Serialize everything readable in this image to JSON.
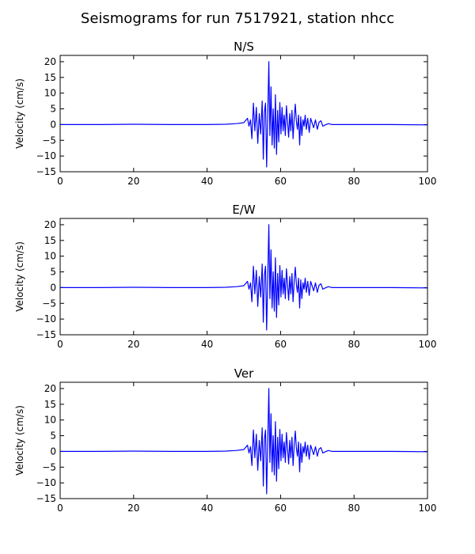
{
  "suptitle": "Seismograms for run 7517921, station nhcc",
  "chart_data": [
    {
      "type": "line",
      "title": "N/S",
      "ylabel": "Velocity (cm/s)",
      "xlabel": "",
      "xlim": [
        0,
        100
      ],
      "ylim": [
        -15,
        22
      ],
      "xticks": [
        "0",
        "20",
        "40",
        "60",
        "80",
        "100"
      ],
      "yticks": [
        "20",
        "15",
        "10",
        "5",
        "0",
        "−5",
        "−10",
        "−15"
      ],
      "grid": false,
      "series": [
        {
          "color": "#0000ff",
          "x": [
            0,
            10,
            20,
            30,
            40,
            45,
            48,
            50,
            51,
            51.4,
            51.8,
            52.2,
            52.6,
            53.0,
            53.4,
            53.8,
            54.2,
            54.6,
            55.0,
            55.3,
            55.6,
            55.9,
            56.2,
            56.5,
            56.8,
            57.1,
            57.4,
            57.7,
            58.0,
            58.3,
            58.6,
            58.9,
            59.2,
            59.5,
            59.8,
            60.1,
            60.4,
            60.7,
            61.0,
            61.3,
            61.6,
            61.9,
            62.2,
            62.5,
            62.8,
            63.1,
            63.4,
            63.7,
            64.0,
            64.3,
            64.6,
            64.9,
            65.2,
            65.5,
            65.8,
            66.1,
            66.4,
            66.7,
            67.0,
            67.4,
            67.8,
            68.2,
            68.6,
            69.0,
            69.5,
            70.0,
            70.5,
            71.0,
            71.5,
            72.0,
            73,
            74,
            76,
            80,
            90,
            100
          ],
          "y": [
            0,
            0,
            0.1,
            0,
            0,
            0.1,
            0.3,
            0.6,
            2.0,
            -0.5,
            1.5,
            -4.5,
            6.8,
            -2.0,
            5.5,
            -6.0,
            3.5,
            -3.0,
            7.5,
            -11.0,
            4.0,
            6.8,
            -13.5,
            3.0,
            20.0,
            -3.5,
            12.0,
            -6.5,
            5.0,
            -7.5,
            9.5,
            -9.5,
            4.5,
            -5.5,
            7.0,
            -3.0,
            5.5,
            -2.0,
            3.0,
            -3.5,
            6.0,
            1.0,
            -4.0,
            3.5,
            -2.0,
            4.5,
            -4.5,
            2.0,
            6.5,
            1.0,
            -1.5,
            3.0,
            -6.5,
            2.5,
            -3.5,
            1.5,
            -0.5,
            3.0,
            -1.5,
            2.0,
            -2.5,
            2.0,
            0.5,
            -1.0,
            1.5,
            -1.5,
            0.8,
            1.2,
            -0.5,
            -0.2,
            0.3,
            0,
            0,
            0,
            0,
            -0.1
          ]
        }
      ]
    },
    {
      "type": "line",
      "title": "E/W",
      "ylabel": "Velocity (cm/s)",
      "xlabel": "",
      "xlim": [
        0,
        100
      ],
      "ylim": [
        -15,
        22
      ],
      "xticks": [
        "0",
        "20",
        "40",
        "60",
        "80",
        "100"
      ],
      "yticks": [
        "20",
        "15",
        "10",
        "5",
        "0",
        "−5",
        "−10",
        "−15"
      ],
      "grid": false,
      "series": [
        {
          "color": "#0000ff",
          "x": [
            0,
            10,
            20,
            30,
            40,
            45,
            48,
            50,
            51,
            51.4,
            51.8,
            52.2,
            52.6,
            53.0,
            53.4,
            53.8,
            54.2,
            54.6,
            55.0,
            55.3,
            55.6,
            55.9,
            56.2,
            56.5,
            56.8,
            57.1,
            57.4,
            57.7,
            58.0,
            58.3,
            58.6,
            58.9,
            59.2,
            59.5,
            59.8,
            60.1,
            60.4,
            60.7,
            61.0,
            61.3,
            61.6,
            61.9,
            62.2,
            62.5,
            62.8,
            63.1,
            63.4,
            63.7,
            64.0,
            64.3,
            64.6,
            64.9,
            65.2,
            65.5,
            65.8,
            66.1,
            66.4,
            66.7,
            67.0,
            67.4,
            67.8,
            68.2,
            68.6,
            69.0,
            69.5,
            70.0,
            70.5,
            71.0,
            71.5,
            72.0,
            73,
            74,
            76,
            80,
            90,
            100
          ],
          "y": [
            0,
            0,
            0.1,
            0,
            0,
            0.1,
            0.3,
            0.6,
            2.0,
            -0.5,
            1.5,
            -4.5,
            6.8,
            -2.0,
            5.5,
            -6.0,
            3.5,
            -3.0,
            7.5,
            -11.0,
            4.0,
            6.8,
            -13.5,
            3.0,
            20.0,
            -3.5,
            12.0,
            -6.5,
            5.0,
            -7.5,
            9.5,
            -9.5,
            4.5,
            -5.5,
            7.0,
            -3.0,
            5.5,
            -2.0,
            3.0,
            -3.5,
            6.0,
            1.0,
            -4.0,
            3.5,
            -2.0,
            4.5,
            -4.5,
            2.0,
            6.5,
            1.0,
            -1.5,
            3.0,
            -6.5,
            2.5,
            -3.5,
            1.5,
            -0.5,
            3.0,
            -1.5,
            2.0,
            -2.5,
            2.0,
            0.5,
            -1.0,
            1.5,
            -1.5,
            0.8,
            1.2,
            -0.5,
            -0.2,
            0.3,
            0,
            0,
            0,
            0,
            -0.1
          ]
        }
      ]
    },
    {
      "type": "line",
      "title": "Ver",
      "ylabel": "Velocity (cm/s)",
      "xlabel": "",
      "xlim": [
        0,
        100
      ],
      "ylim": [
        -15,
        22
      ],
      "xticks": [
        "0",
        "20",
        "40",
        "60",
        "80",
        "100"
      ],
      "yticks": [
        "20",
        "15",
        "10",
        "5",
        "0",
        "−5",
        "−10",
        "−15"
      ],
      "grid": false,
      "series": [
        {
          "color": "#0000ff",
          "x": [
            0,
            10,
            20,
            30,
            40,
            45,
            48,
            50,
            51,
            51.4,
            51.8,
            52.2,
            52.6,
            53.0,
            53.4,
            53.8,
            54.2,
            54.6,
            55.0,
            55.3,
            55.6,
            55.9,
            56.2,
            56.5,
            56.8,
            57.1,
            57.4,
            57.7,
            58.0,
            58.3,
            58.6,
            58.9,
            59.2,
            59.5,
            59.8,
            60.1,
            60.4,
            60.7,
            61.0,
            61.3,
            61.6,
            61.9,
            62.2,
            62.5,
            62.8,
            63.1,
            63.4,
            63.7,
            64.0,
            64.3,
            64.6,
            64.9,
            65.2,
            65.5,
            65.8,
            66.1,
            66.4,
            66.7,
            67.0,
            67.4,
            67.8,
            68.2,
            68.6,
            69.0,
            69.5,
            70.0,
            70.5,
            71.0,
            71.5,
            72.0,
            73,
            74,
            76,
            80,
            90,
            100
          ],
          "y": [
            0,
            0,
            0.1,
            0,
            0,
            0.1,
            0.3,
            0.6,
            2.0,
            -0.5,
            1.5,
            -4.5,
            6.8,
            -2.0,
            5.5,
            -6.0,
            3.5,
            -3.0,
            7.5,
            -11.0,
            4.0,
            6.8,
            -13.5,
            3.0,
            20.0,
            -3.5,
            12.0,
            -6.5,
            5.0,
            -7.5,
            9.5,
            -9.5,
            4.5,
            -5.5,
            7.0,
            -3.0,
            5.5,
            -2.0,
            3.0,
            -3.5,
            6.0,
            1.0,
            -4.0,
            3.5,
            -2.0,
            4.5,
            -4.5,
            2.0,
            6.5,
            1.0,
            -1.5,
            3.0,
            -6.5,
            2.5,
            -3.5,
            1.5,
            -0.5,
            3.0,
            -1.5,
            2.0,
            -2.5,
            2.0,
            0.5,
            -1.0,
            1.5,
            -1.5,
            0.8,
            1.2,
            -0.5,
            -0.2,
            0.3,
            0,
            0,
            0,
            0,
            -0.1
          ]
        }
      ]
    }
  ]
}
